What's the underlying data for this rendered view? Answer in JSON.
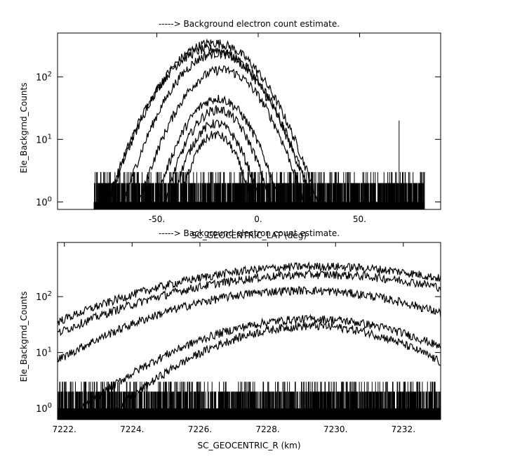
{
  "chart_data": [
    {
      "type": "line",
      "title": "-----> Background electron count estimate.",
      "xlabel": "SC_GEOCENTRIC_LAT (deg)",
      "ylabel": "Ele_Backgrnd_Counts",
      "xlim": [
        -99,
        90
      ],
      "ylim_log10": [
        -0.12,
        2.7
      ],
      "yscale": "log",
      "x_ticks": [
        {
          "value": -50,
          "label": "-50."
        },
        {
          "value": 0,
          "label": "0."
        },
        {
          "value": 50,
          "label": "50."
        }
      ],
      "y_ticks": [
        {
          "exp": 0,
          "base": "10",
          "power": "0"
        },
        {
          "exp": 1,
          "base": "10",
          "power": "1"
        },
        {
          "exp": 2,
          "base": "10",
          "power": "2"
        }
      ],
      "noise_floor": {
        "x_range": [
          -81,
          82
        ],
        "count_levels": [
          1,
          2,
          3
        ],
        "spikes": [
          {
            "x": 69.5,
            "value": 20
          }
        ]
      },
      "series": [
        {
          "peak_x": -22,
          "peak": 350,
          "width": 15
        },
        {
          "peak_x": -24,
          "peak": 280,
          "width": 15
        },
        {
          "peak_x": -20,
          "peak": 240,
          "width": 14
        },
        {
          "peak_x": -18,
          "peak": 130,
          "width": 13
        },
        {
          "peak_x": -20,
          "peak": 45,
          "width": 11
        },
        {
          "peak_x": -20,
          "peak": 30,
          "width": 10
        },
        {
          "peak_x": -21,
          "peak": 18,
          "width": 9
        },
        {
          "peak_x": -21,
          "peak": 12,
          "width": 8
        }
      ]
    },
    {
      "type": "line",
      "title": "-----> Background electron count estimate.",
      "xlabel": "SC_GEOCENTRIC_R (km)",
      "ylabel": "Ele_Backgrnd_Counts",
      "xlim": [
        7221.8,
        7233.1
      ],
      "ylim_log10": [
        -0.2,
        2.97
      ],
      "yscale": "log",
      "x_ticks": [
        {
          "value": 7222,
          "label": "7222."
        },
        {
          "value": 7224,
          "label": "7224."
        },
        {
          "value": 7226,
          "label": "7226."
        },
        {
          "value": 7228,
          "label": "7228."
        },
        {
          "value": 7230,
          "label": "7230."
        },
        {
          "value": 7232,
          "label": "7232."
        }
      ],
      "y_ticks": [
        {
          "exp": 0,
          "base": "10",
          "power": "0"
        },
        {
          "exp": 1,
          "base": "10",
          "power": "1"
        },
        {
          "exp": 2,
          "base": "10",
          "power": "2"
        }
      ],
      "noise_floor": {
        "x_range": [
          7221.8,
          7233.1
        ],
        "count_levels": [
          1,
          2,
          3
        ],
        "spikes": []
      },
      "series": [
        {
          "peak_x": 7229.5,
          "peak": 350,
          "width": 3.6
        },
        {
          "peak_x": 7229.5,
          "peak": 250,
          "width": 3.5
        },
        {
          "peak_x": 7229.0,
          "peak": 130,
          "width": 3.0
        },
        {
          "peak_x": 7229.3,
          "peak": 40,
          "width": 2.5
        },
        {
          "peak_x": 7229.3,
          "peak": 30,
          "width": 2.2
        }
      ]
    }
  ]
}
